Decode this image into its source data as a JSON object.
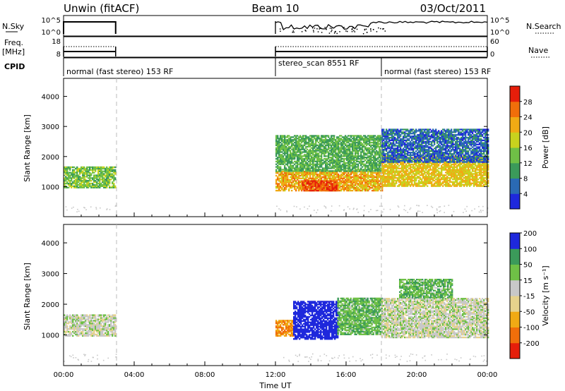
{
  "header": {
    "station": "Unwin (fitACF)",
    "beam": "Beam 10",
    "date": "03/Oct/2011"
  },
  "panels": {
    "nsky_label": "N.Sky",
    "nsky_ticks": [
      "10^5",
      "10^0"
    ],
    "nsearch_label": "N.Search",
    "nsearch_ticks": [
      "10^5",
      "10^0"
    ],
    "freq_label": "Freq.",
    "freq_unit": "[MHz]",
    "freq_ticks": [
      "18",
      "8"
    ],
    "nave_label": "Nave",
    "nave_ticks": [
      "60",
      "0"
    ],
    "cpid_label": "CPID",
    "cpid_segments": [
      {
        "start": 0,
        "end": 3,
        "label": "normal (fast stereo) 153 RF"
      },
      {
        "start": 12,
        "end": 18,
        "label": "stereo_scan 8551 RF"
      },
      {
        "start": 18,
        "end": 24,
        "label": "normal (fast stereo) 153 RF"
      }
    ]
  },
  "chart_data": [
    {
      "type": "heatmap",
      "title": "",
      "xlabel": "Time UT",
      "ylabel": "Slant Range [km]",
      "xlim": [
        0,
        24
      ],
      "ylim": [
        0,
        4600
      ],
      "x_ticks": [
        "00:00",
        "04:00",
        "08:00",
        "12:00",
        "16:00",
        "20:00",
        "00:00"
      ],
      "y_ticks": [
        1000,
        2000,
        3000,
        4000
      ],
      "data_gaps_hours": [
        [
          3,
          12
        ]
      ],
      "mode_change_hours": [
        3,
        12,
        18
      ],
      "colorbar": {
        "label": "Power [dB]",
        "range": [
          0,
          32
        ],
        "ticks": [
          4,
          8,
          12,
          16,
          20,
          24,
          28
        ],
        "colors": [
          "#1e28dc",
          "#2a6ab4",
          "#3b9a5a",
          "#6fc046",
          "#c8d21e",
          "#f0aa14",
          "#f06e0a",
          "#e61e0a"
        ]
      },
      "echo_regions": [
        {
          "t0": 0.0,
          "t1": 2.9,
          "r0": 950,
          "r1": 1650,
          "value": 14
        },
        {
          "t0": 12.0,
          "t1": 18.0,
          "r0": 850,
          "r1": 1500,
          "value": 22
        },
        {
          "t0": 13.5,
          "t1": 15.5,
          "r0": 850,
          "r1": 1200,
          "value": 28
        },
        {
          "t0": 12.0,
          "t1": 18.0,
          "r0": 1500,
          "r1": 2700,
          "value": 12
        },
        {
          "t0": 18.0,
          "t1": 24.0,
          "r0": 1000,
          "r1": 2000,
          "value": 20
        },
        {
          "t0": 18.0,
          "t1": 24.0,
          "r0": 1800,
          "r1": 2900,
          "value": 6
        }
      ]
    },
    {
      "type": "heatmap",
      "title": "",
      "xlabel": "Time UT",
      "ylabel": "Slant Range [km]",
      "xlim": [
        0,
        24
      ],
      "ylim": [
        0,
        4600
      ],
      "x_ticks": [
        "00:00",
        "04:00",
        "08:00",
        "12:00",
        "16:00",
        "20:00",
        "00:00"
      ],
      "y_ticks": [
        1000,
        2000,
        3000,
        4000
      ],
      "data_gaps_hours": [
        [
          3,
          12
        ]
      ],
      "mode_change_hours": [
        3,
        12,
        18
      ],
      "colorbar": {
        "label": "Velocity [m s⁻¹]",
        "tick_labels": [
          "-200",
          "-100",
          "-50",
          "-15",
          "15",
          "50",
          "100",
          "200"
        ],
        "colors": [
          "#e61e0a",
          "#f06e0a",
          "#f0aa14",
          "#e6d28c",
          "#c8c8c8",
          "#6fc046",
          "#3b9a5a",
          "#1e28dc"
        ]
      },
      "echo_regions": [
        {
          "t0": 0.0,
          "t1": 2.9,
          "r0": 950,
          "r1": 1650,
          "value": 0
        },
        {
          "t0": 12.0,
          "t1": 13.0,
          "r0": 950,
          "r1": 1450,
          "value": -100
        },
        {
          "t0": 13.0,
          "t1": 15.5,
          "r0": 850,
          "r1": 2100,
          "value": 150
        },
        {
          "t0": 15.5,
          "t1": 18.0,
          "r0": 1000,
          "r1": 2200,
          "value": 40
        },
        {
          "t0": 18.0,
          "t1": 24.0,
          "r0": 900,
          "r1": 2200,
          "value": 0
        },
        {
          "t0": 19.0,
          "t1": 22.0,
          "r0": 2200,
          "r1": 2800,
          "value": 40
        }
      ]
    }
  ]
}
